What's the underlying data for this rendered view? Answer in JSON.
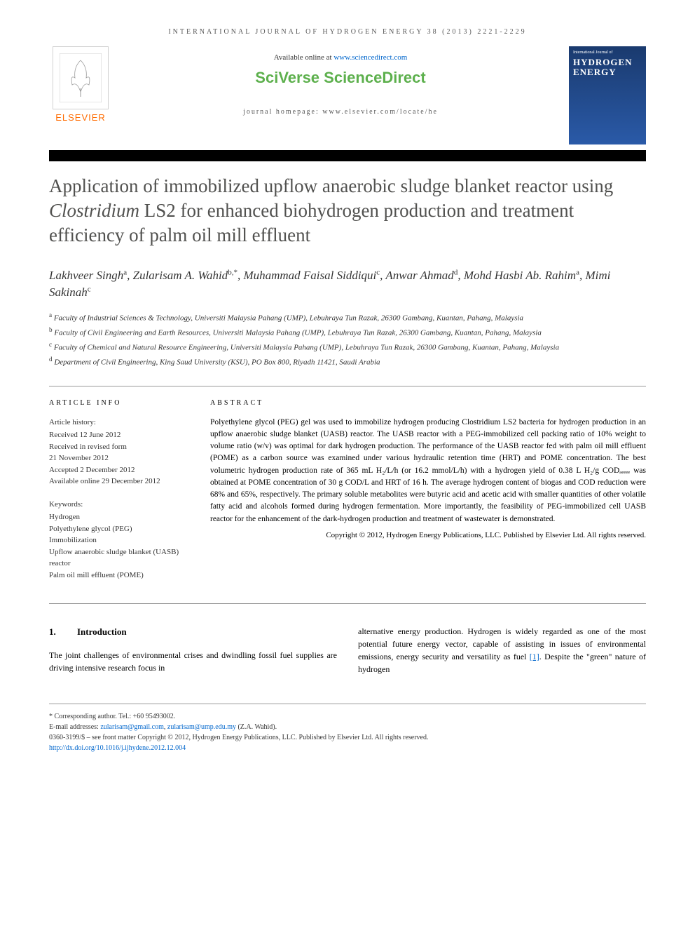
{
  "journal_header": "INTERNATIONAL JOURNAL OF HYDROGEN ENERGY 38 (2013) 2221-2229",
  "available_text": "Available online at ",
  "available_link": "www.sciencedirect.com",
  "platform_name": "SciVerse ScienceDirect",
  "journal_homepage": "journal homepage: www.elsevier.com/locate/he",
  "publisher": "ELSEVIER",
  "cover": {
    "small": "International Journal of",
    "big1": "HYDROGEN",
    "big2": "ENERGY"
  },
  "title_parts": {
    "pre": "Application of immobilized upflow anaerobic sludge blanket reactor using ",
    "em": "Clostridium",
    "post": " LS2 for enhanced biohydrogen production and treatment efficiency of palm oil mill effluent"
  },
  "authors_html": "Lakhveer Singh<sup>a</sup>, Zularisam A. Wahid<sup>b,*</sup>, Muhammad Faisal Siddiqui<sup>c</sup>, Anwar Ahmad<sup>d</sup>, Mohd Hasbi Ab. Rahim<sup>a</sup>, Mimi Sakinah<sup>c</sup>",
  "affiliations": [
    "<sup>a</sup> Faculty of Industrial Sciences & Technology, Universiti Malaysia Pahang (UMP), Lebuhraya Tun Razak, 26300 Gambang, Kuantan, Pahang, Malaysia",
    "<sup>b</sup> Faculty of Civil Engineering and Earth Resources, Universiti Malaysia Pahang (UMP), Lebuhraya Tun Razak, 26300 Gambang, Kuantan, Pahang, Malaysia",
    "<sup>c</sup> Faculty of Chemical and Natural Resource Engineering, Universiti Malaysia Pahang (UMP), Lebuhraya Tun Razak, 26300 Gambang, Kuantan, Pahang, Malaysia",
    "<sup>d</sup> Department of Civil Engineering, King Saud University (KSU), PO Box 800, Riyadh 11421, Saudi Arabia"
  ],
  "article_info": {
    "heading": "ARTICLE INFO",
    "history_label": "Article history:",
    "history": [
      "Received 12 June 2012",
      "Received in revised form",
      "21 November 2012",
      "Accepted 2 December 2012",
      "Available online 29 December 2012"
    ],
    "keywords_label": "Keywords:",
    "keywords": [
      "Hydrogen",
      "Polyethylene glycol (PEG)",
      "Immobilization",
      "Upflow anaerobic sludge blanket (UASB) reactor",
      "Palm oil mill effluent (POME)"
    ]
  },
  "abstract": {
    "heading": "ABSTRACT",
    "text": "Polyethylene glycol (PEG) gel was used to immobilize hydrogen producing Clostridium LS2 bacteria for hydrogen production in an upflow anaerobic sludge blanket (UASB) reactor. The UASB reactor with a PEG-immobilized cell packing ratio of 10% weight to volume ratio (w/v) was optimal for dark hydrogen production. The performance of the UASB reactor fed with palm oil mill effluent (POME) as a carbon source was examined under various hydraulic retention time (HRT) and POME concentration. The best volumetric hydrogen production rate of 365 mL H₂/L/h (or 16.2 mmol/L/h) with a hydrogen yield of 0.38 L H₂/g CODₐₑₑₑₑ was obtained at POME concentration of 30 g COD/L and HRT of 16 h. The average hydrogen content of biogas and COD reduction were 68% and 65%, respectively. The primary soluble metabolites were butyric acid and acetic acid with smaller quantities of other volatile fatty acid and alcohols formed during hydrogen fermentation. More importantly, the feasibility of PEG-immobilized cell UASB reactor for the enhancement of the dark-hydrogen production and treatment of wastewater is demonstrated.",
    "copyright": "Copyright © 2012, Hydrogen Energy Publications, LLC. Published by Elsevier Ltd. All rights reserved."
  },
  "section1": {
    "num": "1.",
    "heading": "Introduction",
    "col1": "The joint challenges of environmental crises and dwindling fossil fuel supplies are driving intensive research focus in",
    "col2_pre": "alternative energy production. Hydrogen is widely regarded as one of the most potential future energy vector, capable of assisting in issues of environmental emissions, energy security and versatility as fuel ",
    "col2_ref": "[1]",
    "col2_post": ". Despite the \"green\" nature of hydrogen"
  },
  "footer": {
    "corresponding": "* Corresponding author. Tel.: +60 95493002.",
    "email_label": "E-mail addresses: ",
    "email1": "zularisam@gmail.com",
    "email_sep": ", ",
    "email2": "zularisam@ump.edu.my",
    "email_person": " (Z.A. Wahid).",
    "issn": "0360-3199/$ – see front matter Copyright © 2012, Hydrogen Energy Publications, LLC. Published by Elsevier Ltd. All rights reserved.",
    "doi": "http://dx.doi.org/10.1016/j.ijhydene.2012.12.004"
  },
  "colors": {
    "title_gray": "#51514f",
    "link_blue": "#0066cc",
    "elsevier_orange": "#ff6b00",
    "sciverse_green": "#5db04d"
  }
}
